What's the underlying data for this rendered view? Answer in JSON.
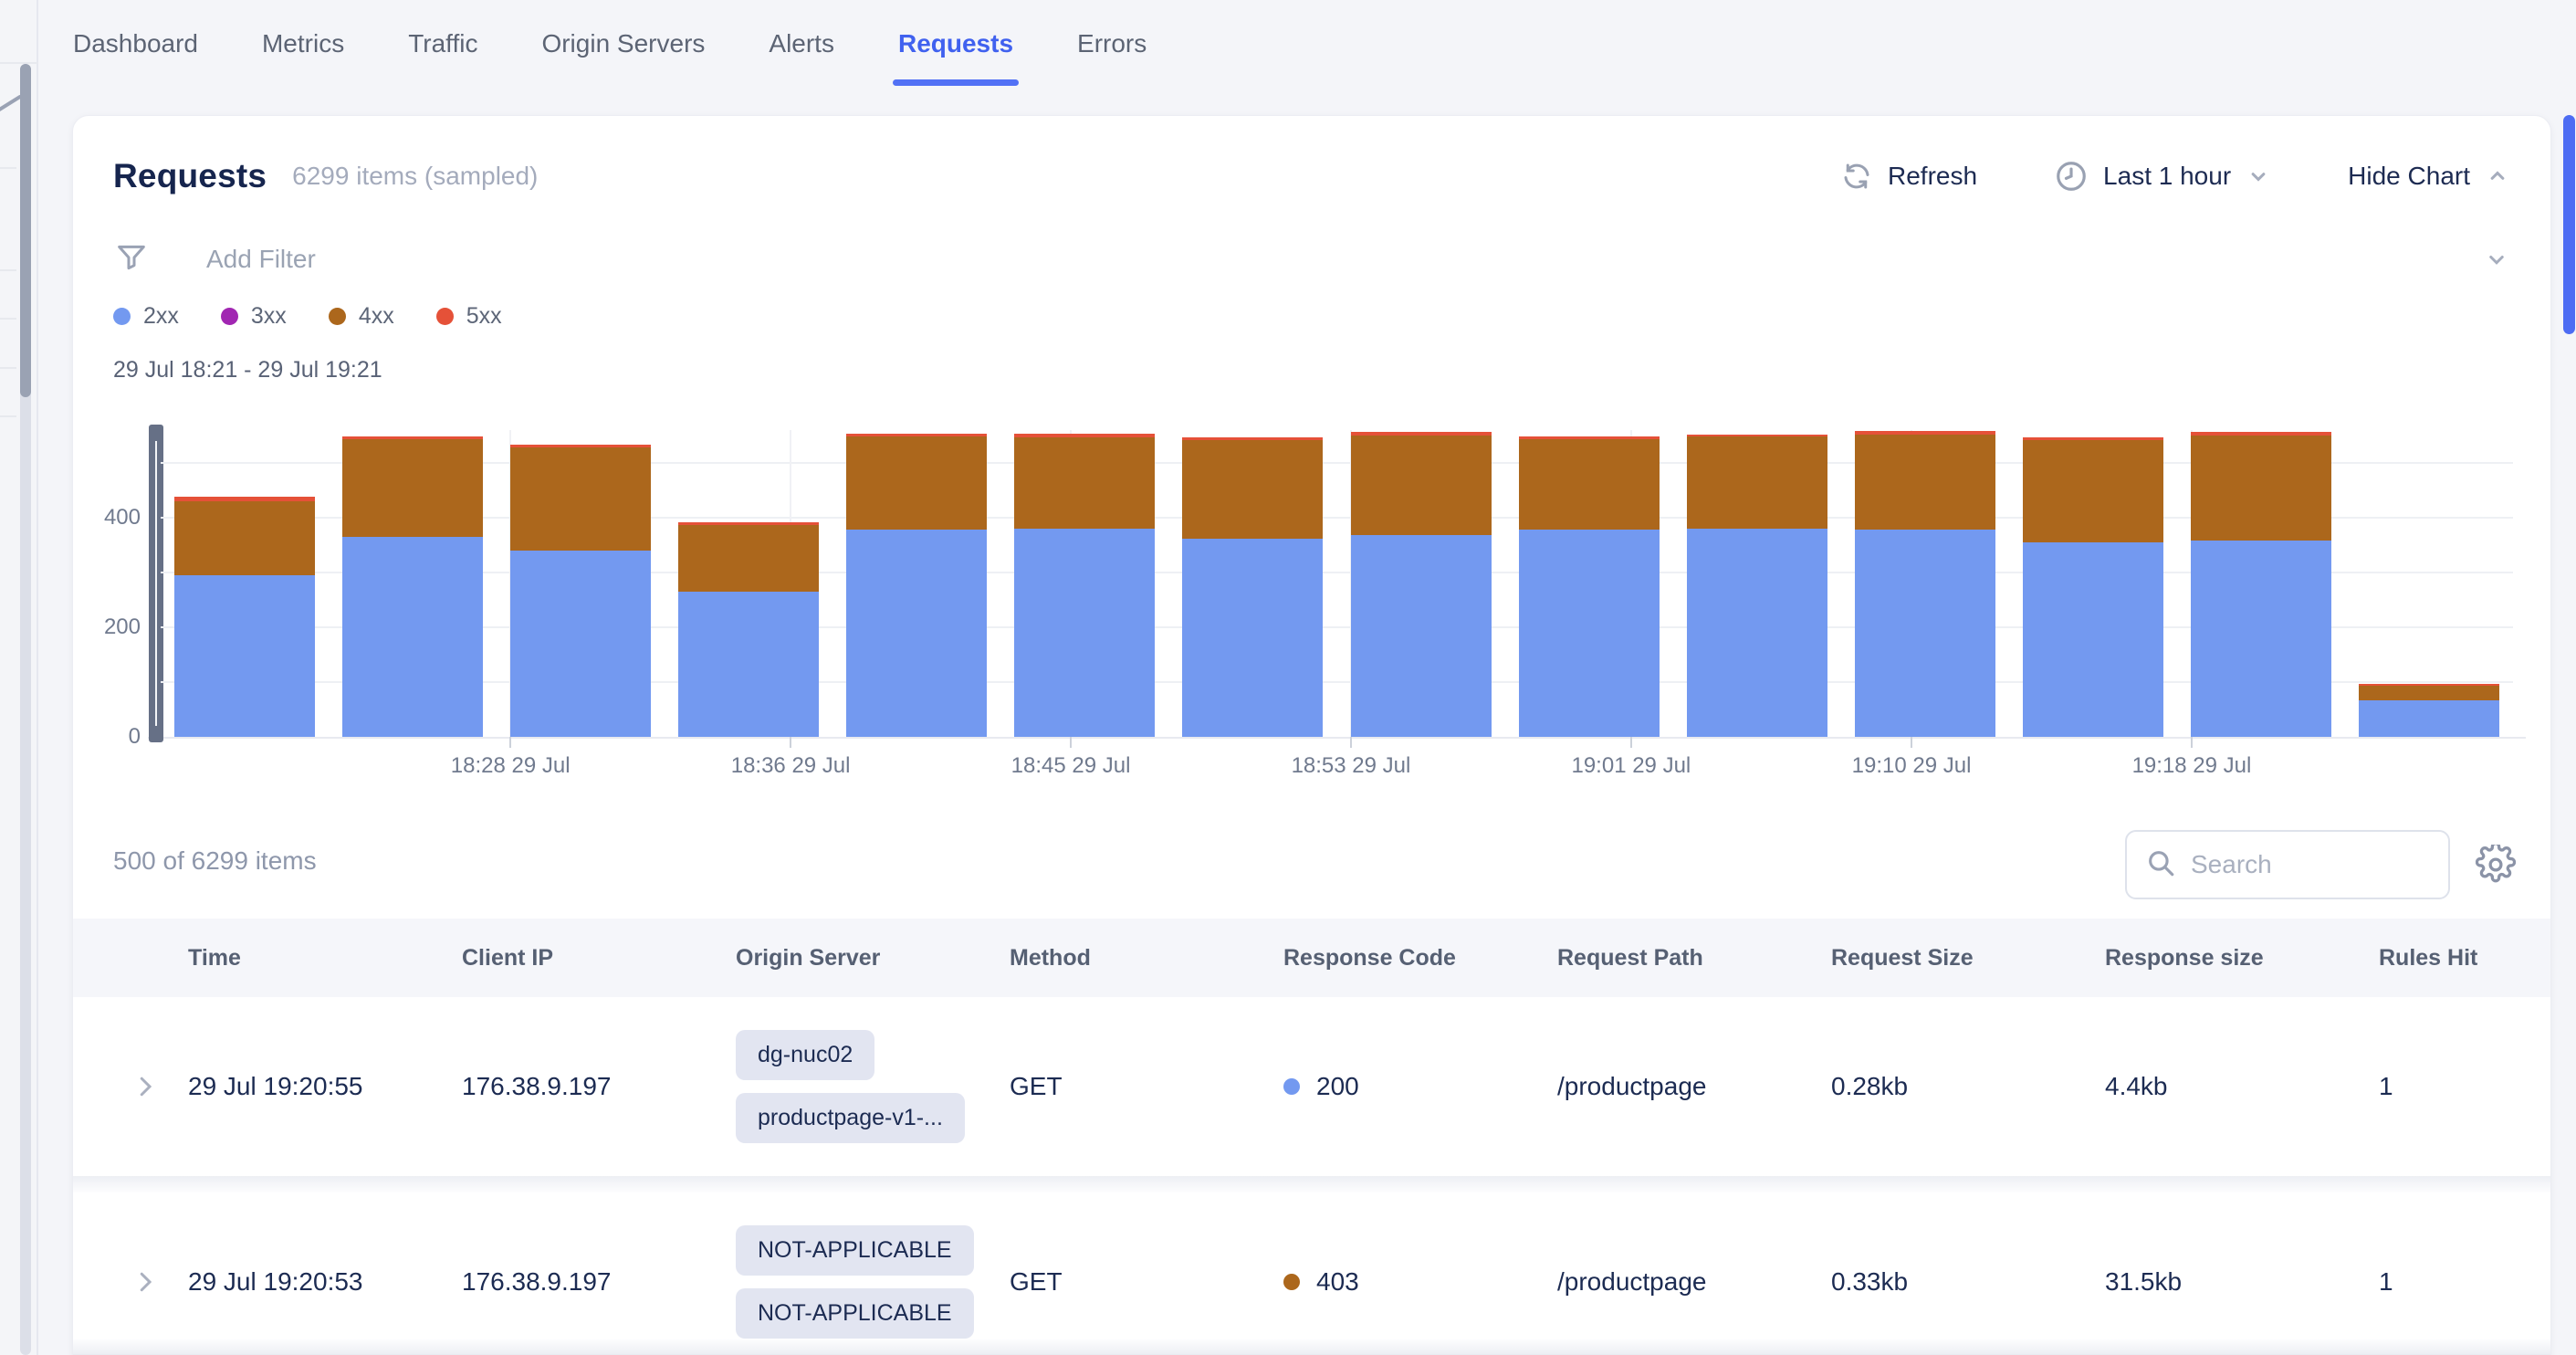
{
  "nav": {
    "tabs": [
      {
        "label": "Dashboard",
        "active": false
      },
      {
        "label": "Metrics",
        "active": false
      },
      {
        "label": "Traffic",
        "active": false
      },
      {
        "label": "Origin Servers",
        "active": false
      },
      {
        "label": "Alerts",
        "active": false
      },
      {
        "label": "Requests",
        "active": true
      },
      {
        "label": "Errors",
        "active": false
      }
    ]
  },
  "header": {
    "title": "Requests",
    "items_label": "6299 items (sampled)",
    "refresh_label": "Refresh",
    "time_range_label": "Last 1 hour",
    "hide_chart_label": "Hide Chart"
  },
  "filter": {
    "placeholder": "Add Filter"
  },
  "legend": [
    {
      "label": "2xx",
      "color": "#7399f0"
    },
    {
      "label": "3xx",
      "color": "#a126b2"
    },
    {
      "label": "4xx",
      "color": "#ac671c"
    },
    {
      "label": "5xx",
      "color": "#e55138"
    }
  ],
  "chart_data": {
    "type": "bar",
    "stacked": true,
    "range_label": "29 Jul 18:21 - 29 Jul 19:21",
    "y_ticks": [
      "0",
      "200",
      "400"
    ],
    "ylim": [
      0,
      560
    ],
    "grid_values": [
      100,
      200,
      300,
      400,
      500
    ],
    "x_tick_labels": [
      "18:28 29 Jul",
      "18:36 29 Jul",
      "18:45 29 Jul",
      "18:53 29 Jul",
      "19:01 29 Jul",
      "19:10 29 Jul",
      "19:18 29 Jul"
    ],
    "series": [
      {
        "name": "2xx",
        "color": "#7399f0",
        "values": [
          295,
          365,
          340,
          265,
          378,
          380,
          362,
          368,
          378,
          380,
          378,
          355,
          358,
          66
        ]
      },
      {
        "name": "3xx",
        "color": "#a126b2",
        "values": [
          0,
          0,
          0,
          0,
          0,
          0,
          0,
          0,
          0,
          0,
          0,
          0,
          0,
          0
        ]
      },
      {
        "name": "4xx",
        "color": "#ac671c",
        "values": [
          135,
          178,
          188,
          122,
          170,
          166,
          180,
          182,
          166,
          168,
          174,
          186,
          192,
          27
        ]
      },
      {
        "name": "5xx",
        "color": "#e55138",
        "values": [
          8,
          6,
          5,
          5,
          6,
          8,
          5,
          6,
          5,
          4,
          6,
          5,
          6,
          3
        ]
      }
    ]
  },
  "table": {
    "summary": "500 of 6299 items",
    "search_placeholder": "Search",
    "columns": [
      "Time",
      "Client IP",
      "Origin Server",
      "Method",
      "Response Code",
      "Request Path",
      "Request Size",
      "Response size",
      "Rules Hit"
    ],
    "rows": [
      {
        "time": "29 Jul 19:20:55",
        "client_ip": "176.38.9.197",
        "origin_server": [
          "dg-nuc02",
          "productpage-v1-..."
        ],
        "method": "GET",
        "response_code": "200",
        "response_code_color": "#7399f0",
        "request_path": "/productpage",
        "request_size": "0.28kb",
        "response_size": "4.4kb",
        "rules_hit": "1"
      },
      {
        "time": "29 Jul 19:20:53",
        "client_ip": "176.38.9.197",
        "origin_server": [
          "NOT-APPLICABLE",
          "NOT-APPLICABLE"
        ],
        "method": "GET",
        "response_code": "403",
        "response_code_color": "#ac671c",
        "request_path": "/productpage",
        "request_size": "0.33kb",
        "response_size": "31.5kb",
        "rules_hit": "1"
      }
    ]
  },
  "colors": {
    "accent": "#4d6cf3",
    "active_tab": "#4061ef",
    "status_2xx": "#7399f0",
    "status_3xx": "#a126b2",
    "status_4xx": "#ac671c",
    "status_5xx": "#e55138"
  }
}
